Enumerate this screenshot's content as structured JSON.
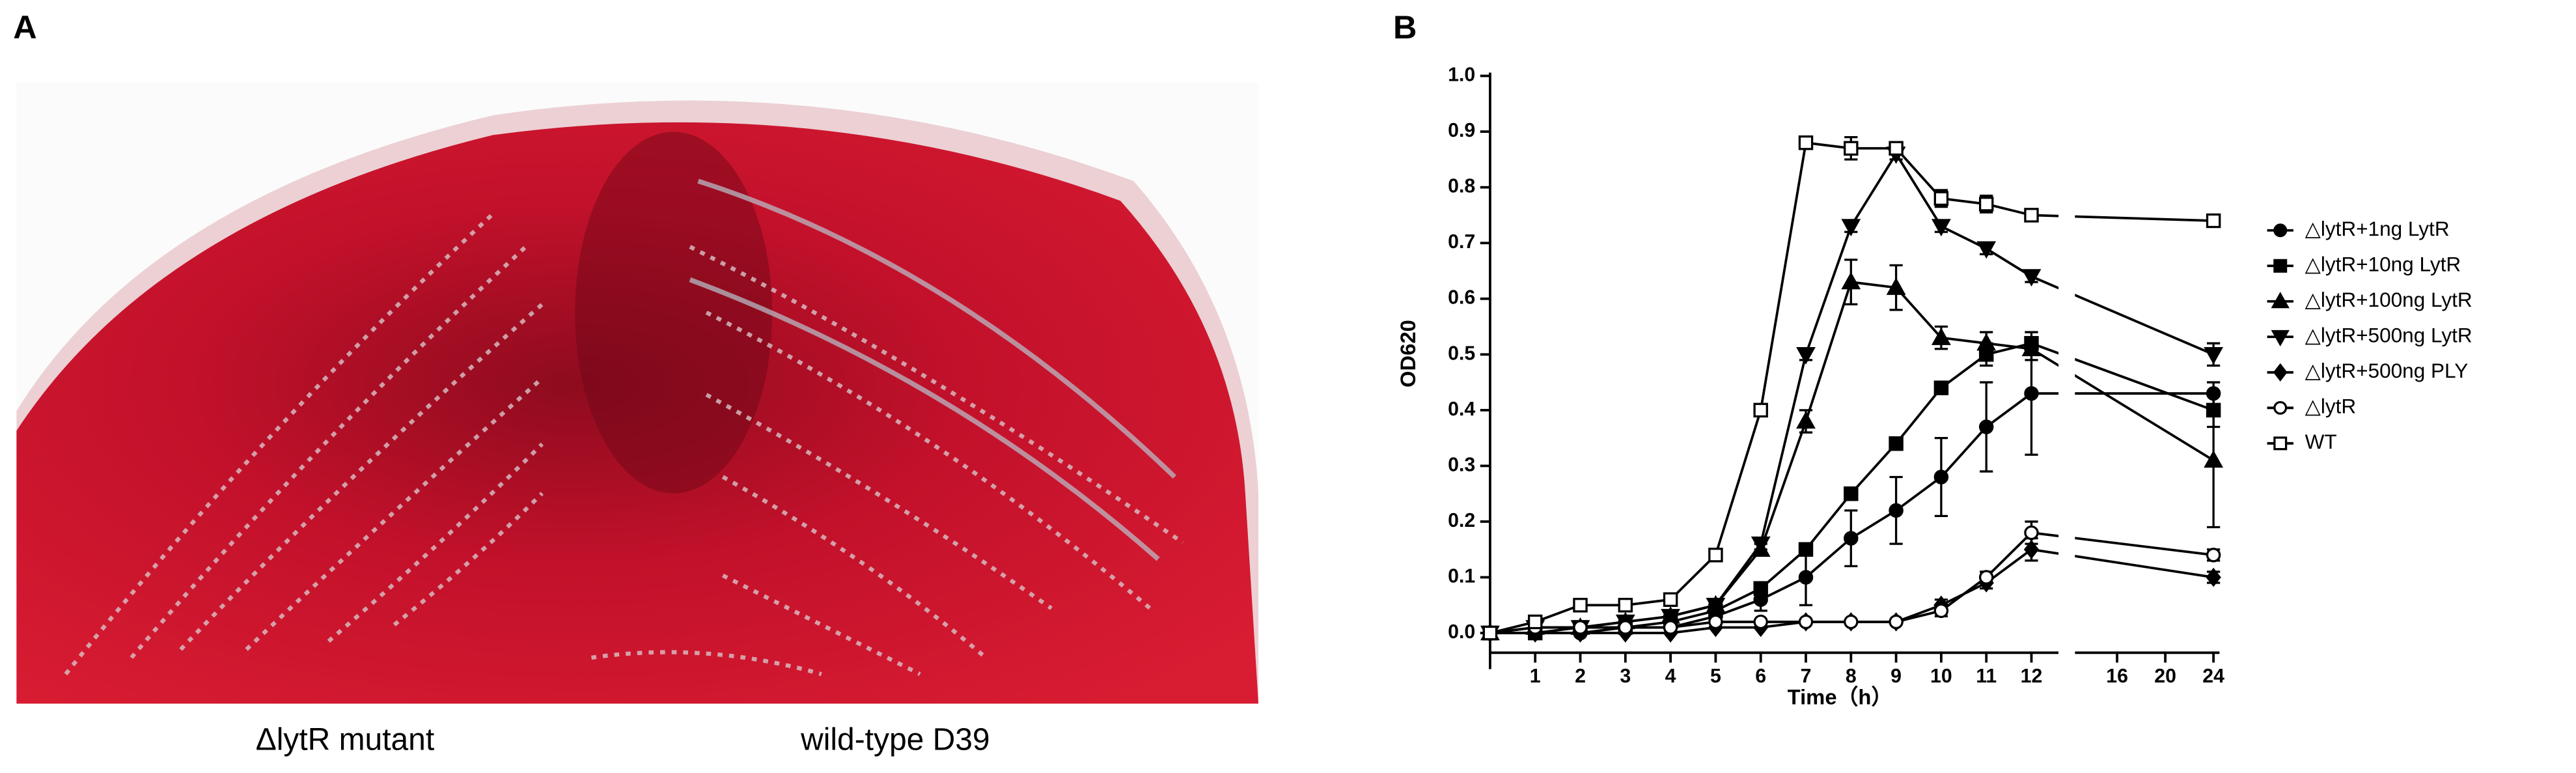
{
  "panels": {
    "a": {
      "label": "A",
      "captions": [
        "ΔlytR mutant",
        "wild-type D39"
      ]
    },
    "b": {
      "label": "B"
    }
  },
  "chart_data": {
    "type": "line",
    "xlabel": "Time（h）",
    "ylabel": "OD620",
    "x": [
      0,
      1,
      2,
      3,
      4,
      5,
      6,
      7,
      8,
      9,
      10,
      11,
      12,
      24
    ],
    "x_segments": [
      {
        "xlim": [
          0,
          12.6
        ],
        "xticks": [
          1,
          2,
          3,
          4,
          5,
          6,
          7,
          8,
          9,
          10,
          11,
          12
        ]
      },
      {
        "xlim": [
          12.5,
          24.5
        ],
        "xticks": [
          16,
          20,
          24
        ]
      }
    ],
    "ylim": [
      0,
      1
    ],
    "yticks": [
      {
        "value": 0,
        "label": "0.0"
      },
      0.1,
      0.2,
      0.3,
      0.4,
      0.5,
      0.6,
      0.7,
      0.8,
      0.9,
      {
        "value": 1,
        "label": "1.0"
      }
    ],
    "legend": "right",
    "series": [
      {
        "name": "△lytR+1ng LytR",
        "color": "#000000",
        "marker": "circle",
        "values": [
          0,
          0,
          0,
          0.01,
          0.01,
          0.03,
          0.06,
          0.1,
          0.17,
          0.22,
          0.28,
          0.37,
          0.43,
          0.43
        ],
        "errors": [
          0,
          0,
          0,
          0,
          0,
          0,
          0.02,
          0.05,
          0.05,
          0.06,
          0.07,
          0.08,
          0.11,
          0.02
        ]
      },
      {
        "name": "△lytR+10ng LytR",
        "color": "#000000",
        "marker": "square",
        "values": [
          0,
          0,
          0.01,
          0.01,
          0.02,
          0.04,
          0.08,
          0.15,
          0.25,
          0.34,
          0.44,
          0.5,
          0.52,
          0.4
        ],
        "errors": [
          0,
          0,
          0,
          0,
          0,
          0,
          0.01,
          0.01,
          0.01,
          0.01,
          0.01,
          0.02,
          0.01,
          0.03
        ]
      },
      {
        "name": "△lytR+100ng LytR",
        "color": "#000000",
        "marker": "triangle-up",
        "values": [
          0,
          0.01,
          0.01,
          0.02,
          0.03,
          0.05,
          0.15,
          0.38,
          0.63,
          0.62,
          0.53,
          0.52,
          0.51,
          0.31
        ],
        "errors": [
          0,
          0,
          0,
          0,
          0,
          0,
          0.01,
          0.02,
          0.04,
          0.04,
          0.02,
          0.02,
          0.02,
          0.12
        ]
      },
      {
        "name": "△lytR+500ng LytR",
        "color": "#000000",
        "marker": "triangle-down",
        "values": [
          0,
          0.01,
          0.01,
          0.02,
          0.03,
          0.05,
          0.16,
          0.5,
          0.73,
          0.86,
          0.73,
          0.69,
          0.64,
          0.5
        ],
        "errors": [
          0,
          0,
          0,
          0,
          0,
          0,
          0.01,
          0.01,
          0.01,
          0.01,
          0.01,
          0.01,
          0.01,
          0.02
        ]
      },
      {
        "name": "△lytR+500ng PLY",
        "color": "#000000",
        "marker": "diamond",
        "values": [
          0,
          0,
          0,
          0,
          0,
          0.01,
          0.01,
          0.02,
          0.02,
          0.02,
          0.05,
          0.09,
          0.15,
          0.1
        ],
        "errors": [
          0,
          0,
          0,
          0,
          0,
          0,
          0,
          0,
          0,
          0,
          0.01,
          0.01,
          0.02,
          0.01
        ]
      },
      {
        "name": "△lytR",
        "color": "#000000",
        "marker": "circle-open",
        "values": [
          0,
          0.01,
          0.01,
          0.01,
          0.01,
          0.02,
          0.02,
          0.02,
          0.02,
          0.02,
          0.04,
          0.1,
          0.18,
          0.14
        ],
        "errors": [
          0,
          0,
          0,
          0,
          0,
          0,
          0,
          0,
          0,
          0,
          0.01,
          0.01,
          0.02,
          0.01
        ]
      },
      {
        "name": "WT",
        "color": "#000000",
        "marker": "square-open",
        "values": [
          0,
          0.02,
          0.05,
          0.05,
          0.06,
          0.14,
          0.4,
          0.88,
          0.87,
          0.87,
          0.78,
          0.77,
          0.75,
          0.74
        ],
        "errors": [
          0,
          0,
          0,
          0,
          0,
          0.01,
          0.01,
          0.01,
          0.02,
          0.01,
          0.015,
          0.015,
          0.01,
          0.01
        ]
      }
    ]
  }
}
